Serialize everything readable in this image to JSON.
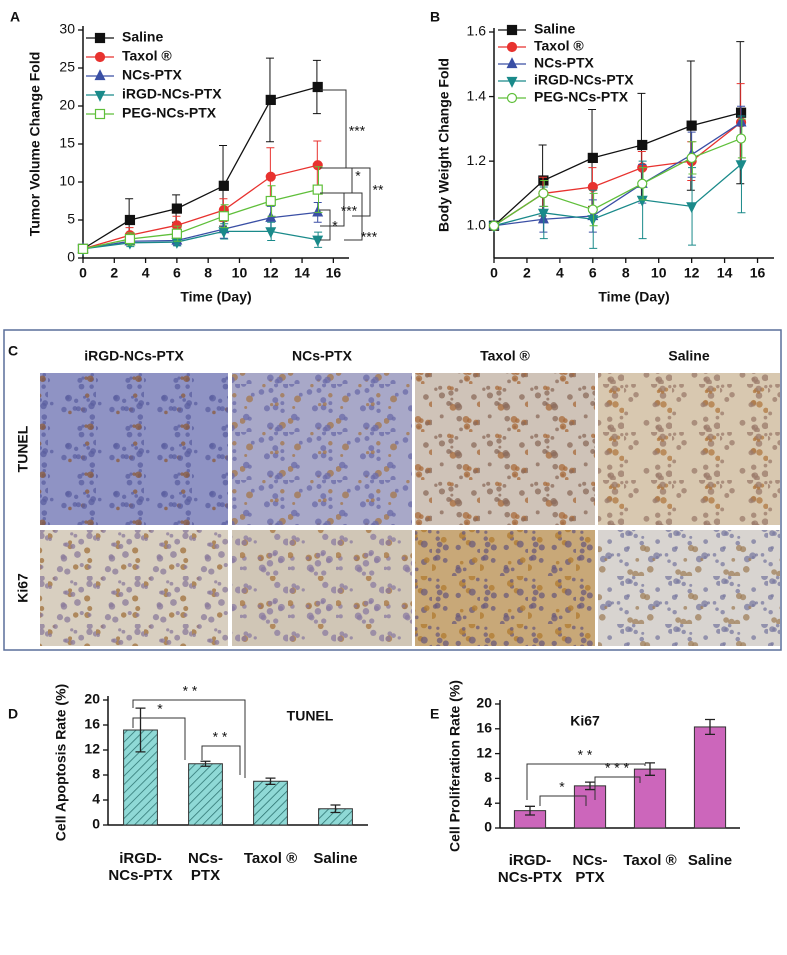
{
  "chart_data": [
    {
      "type": "line",
      "panel_label": "A",
      "xlabel": "Time (Day)",
      "ylabel": "Tumor Volume Change Fold",
      "x": [
        0,
        3,
        6,
        9,
        12,
        15
      ],
      "xlim": [
        0,
        17
      ],
      "xticks": [
        0,
        2,
        4,
        6,
        8,
        10,
        12,
        14,
        16
      ],
      "ylim": [
        0,
        30
      ],
      "yticks": [
        0,
        5,
        10,
        15,
        20,
        25,
        30
      ],
      "series": [
        {
          "name": "Saline",
          "color": "#111111",
          "marker": "square",
          "values": [
            1.2,
            5,
            6.5,
            9.5,
            20.8,
            22.5
          ],
          "errors": [
            0,
            2.8,
            1.8,
            5.3,
            5.5,
            3.5
          ]
        },
        {
          "name": "Taxol ®",
          "color": "#e8322f",
          "marker": "circle",
          "values": [
            1.2,
            3,
            4.3,
            6.3,
            10.7,
            12.2
          ],
          "errors": [
            0,
            1,
            1.2,
            1.5,
            3.8,
            3.2
          ]
        },
        {
          "name": "NCs-PTX",
          "color": "#3a4fa5",
          "marker": "triangle",
          "values": [
            1.2,
            2.2,
            2.3,
            3.8,
            5.3,
            6.0
          ],
          "errors": [
            0,
            0.5,
            0.6,
            1.2,
            1.5,
            1.3
          ]
        },
        {
          "name": "iRGD-NCs-PTX",
          "color": "#1a8a8a",
          "marker": "triangle-down",
          "values": [
            1.2,
            2,
            2.1,
            3.5,
            3.5,
            2.4
          ],
          "errors": [
            0,
            0.5,
            0.5,
            1,
            1.2,
            1
          ]
        },
        {
          "name": "PEG-NCs-PTX",
          "color": "#5fbf3a",
          "marker": "open-square",
          "values": [
            1.2,
            2.5,
            3.2,
            5.5,
            7.5,
            9
          ],
          "errors": [
            0,
            0.8,
            1,
            1.5,
            2,
            3
          ]
        }
      ],
      "annotations": [
        "***",
        "*",
        "**",
        "***",
        "*",
        "***"
      ]
    },
    {
      "type": "line",
      "panel_label": "B",
      "xlabel": "Time (Day)",
      "ylabel": "Body Weight  Change Fold",
      "x": [
        0,
        3,
        6,
        9,
        12,
        15
      ],
      "xlim": [
        0,
        17
      ],
      "xticks": [
        0,
        2,
        4,
        6,
        8,
        10,
        12,
        14,
        16
      ],
      "ylim": [
        0.9,
        1.6
      ],
      "yticks": [
        {
          "value": 1,
          "label": "1.0"
        },
        1.2,
        1.4,
        1.6
      ],
      "series": [
        {
          "name": "Saline",
          "color": "#111111",
          "marker": "square",
          "values": [
            1.0,
            1.14,
            1.21,
            1.25,
            1.31,
            1.35
          ],
          "errors": [
            0,
            0.11,
            0.15,
            0.16,
            0.2,
            0.22
          ]
        },
        {
          "name": "Taxol ®",
          "color": "#e8322f",
          "marker": "circle",
          "values": [
            1.0,
            1.1,
            1.12,
            1.18,
            1.2,
            1.32
          ],
          "errors": [
            0,
            0.05,
            0.06,
            0.05,
            0.06,
            0.12
          ]
        },
        {
          "name": "NCs-PTX",
          "color": "#3a4fa5",
          "marker": "triangle",
          "values": [
            1.0,
            1.02,
            1.03,
            1.13,
            1.22,
            1.32
          ],
          "errors": [
            0,
            0.04,
            0.05,
            0.06,
            0.07,
            0.05
          ]
        },
        {
          "name": "iRGD-NCs-PTX",
          "color": "#1a8a8a",
          "marker": "triangle-down",
          "values": [
            1.0,
            1.04,
            1.02,
            1.08,
            1.06,
            1.19
          ],
          "errors": [
            0,
            0.08,
            0.09,
            0.12,
            0.12,
            0.15
          ]
        },
        {
          "name": "PEG-NCs-PTX",
          "color": "#5fbf3a",
          "marker": "open-circle",
          "values": [
            1.0,
            1.1,
            1.05,
            1.13,
            1.21,
            1.27
          ],
          "errors": [
            0,
            0.04,
            0.05,
            0.05,
            0.05,
            0.06
          ]
        }
      ]
    },
    {
      "type": "bar",
      "panel_label": "D",
      "title": "TUNEL",
      "ylabel": "Cell Apoptosis Rate (%)",
      "categories": [
        "iRGD-\nNCs-PTX",
        "NCs-\nPTX",
        "Taxol ®",
        "Saline"
      ],
      "values": [
        15.2,
        9.8,
        7.0,
        2.6
      ],
      "errors": [
        3.5,
        0.4,
        0.5,
        0.6
      ],
      "color": "#8fd9d6",
      "hatch": true,
      "ylim": [
        0,
        20
      ],
      "yticks": [
        0,
        4,
        8,
        12,
        16,
        20
      ],
      "annotations": [
        "*",
        "* *",
        "* *"
      ]
    },
    {
      "type": "bar",
      "panel_label": "E",
      "title": "Ki67",
      "ylabel": "Cell Proliferation Rate (%)",
      "categories": [
        "iRGD-\nNCs-PTX",
        "NCs-\nPTX",
        "Taxol ®",
        "Saline"
      ],
      "values": [
        2.8,
        6.8,
        9.5,
        16.3
      ],
      "errors": [
        0.7,
        0.6,
        1.0,
        1.2
      ],
      "color": "#cc66bb",
      "hatch": false,
      "ylim": [
        0,
        20
      ],
      "yticks": [
        0,
        4,
        8,
        12,
        16,
        20
      ],
      "annotations": [
        "* *",
        "*",
        "* * *"
      ]
    }
  ],
  "image_panel": {
    "panel_label": "C",
    "columns": [
      "iRGD-NCs-PTX",
      "NCs-PTX",
      "Taxol ®",
      "Saline"
    ],
    "rows": [
      "TUNEL",
      "Ki67"
    ]
  }
}
